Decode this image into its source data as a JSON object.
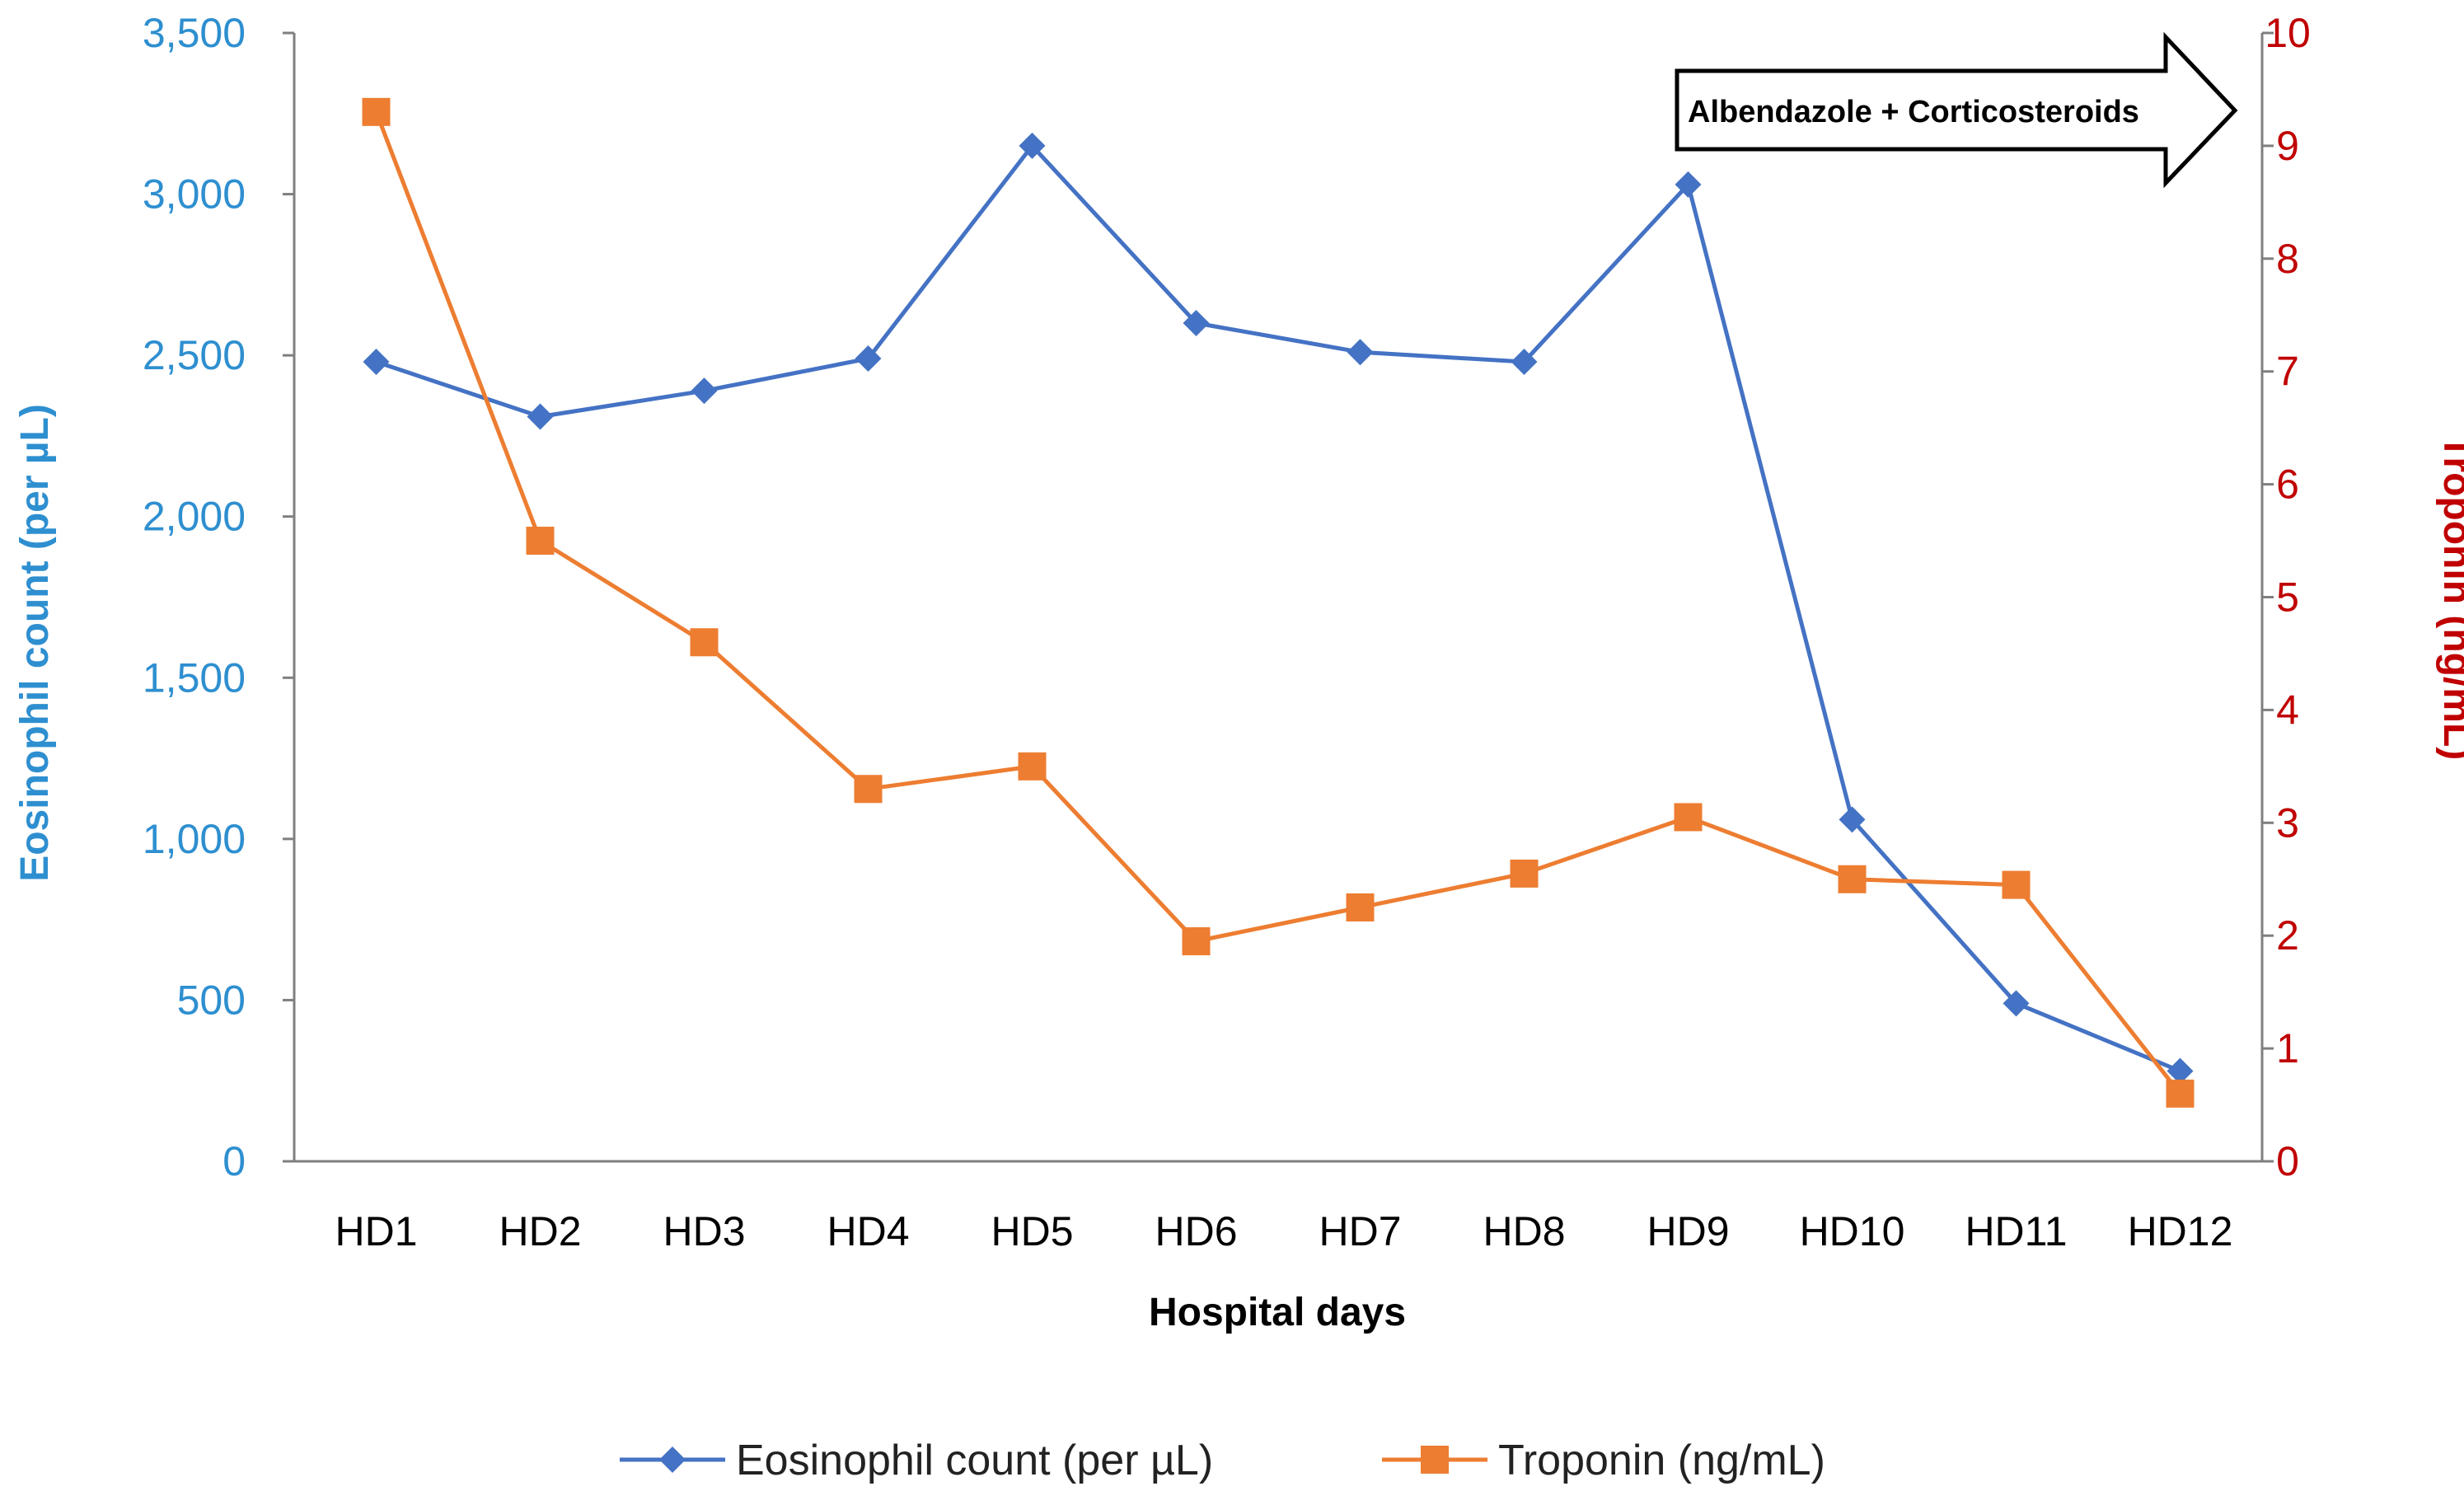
{
  "chart_data": {
    "type": "line",
    "title": "",
    "categories": [
      "HD1",
      "HD2",
      "HD3",
      "HD4",
      "HD5",
      "HD6",
      "HD7",
      "HD8",
      "HD9",
      "HD10",
      "HD11",
      "HD12"
    ],
    "xlabel": "Hospital days",
    "y_left": {
      "label": "Eosinophil count (per µL)",
      "range": [
        0,
        3500
      ],
      "ticks": [
        0,
        500,
        1000,
        1500,
        2000,
        2500,
        3000,
        3500
      ],
      "tick_labels": [
        "0",
        "500",
        "1,000",
        "1,500",
        "2,000",
        "2,500",
        "3,000",
        "3,500"
      ]
    },
    "y_right": {
      "label": "Troponin (ng/mL)",
      "range": [
        0,
        10
      ],
      "ticks": [
        0,
        1,
        2,
        3,
        4,
        5,
        6,
        7,
        8,
        9,
        10
      ],
      "tick_labels": [
        "0",
        "1",
        "2",
        "3",
        "4",
        "5",
        "6",
        "7",
        "8",
        "9",
        "10"
      ]
    },
    "series": [
      {
        "name": "Eosinophil count (per µL)",
        "axis": "left",
        "color": "#4472c4",
        "marker": "diamond",
        "values": [
          2480,
          2310,
          2390,
          2490,
          3150,
          2600,
          2510,
          2480,
          3030,
          1060,
          490,
          280
        ]
      },
      {
        "name": "Troponin (ng/mL)",
        "axis": "right",
        "color": "#ed7d31",
        "marker": "square",
        "values": [
          9.3,
          5.5,
          4.6,
          3.3,
          3.5,
          1.95,
          2.25,
          2.55,
          3.05,
          2.5,
          2.45,
          0.6
        ]
      }
    ],
    "annotation": {
      "text": "Albendazole + Corticosteroids",
      "start_category": "HD9",
      "direction": "right"
    },
    "legend_position": "bottom",
    "grid": false,
    "colors": {
      "left_axis": "#2e8fd0",
      "right_axis": "#c00000",
      "axis_line": "#7f7f7f"
    }
  }
}
